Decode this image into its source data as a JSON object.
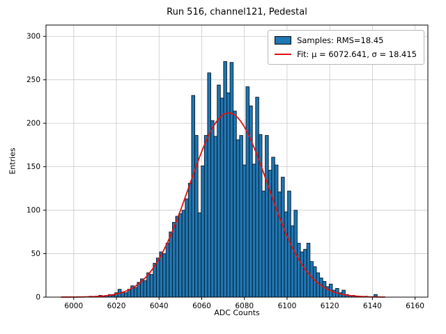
{
  "chart_data": {
    "type": "bar",
    "subtype": "histogram-with-gaussian-fit",
    "title": "Run 516, channel121, Pedestal",
    "xlabel": "ADC Counts",
    "ylabel": "Entries",
    "xlim": [
      5987,
      6166
    ],
    "ylim": [
      0,
      313
    ],
    "x_ticks": [
      6000,
      6020,
      6040,
      6060,
      6080,
      6100,
      6120,
      6140,
      6160
    ],
    "y_ticks": [
      0,
      50,
      100,
      150,
      200,
      250,
      300
    ],
    "grid": true,
    "grid_color": "#c9c9c9",
    "legend": {
      "position": "upper right",
      "items": [
        {
          "label": "Samples: RMS=18.45",
          "type": "patch",
          "color": "#1f77b4"
        },
        {
          "label": "Fit: μ = 6072.641, σ = 18.415",
          "type": "line",
          "color": "#e01212"
        }
      ]
    },
    "histogram": {
      "fill": "#1f77b4",
      "edge": "#0a1622",
      "bin_width": 1.5,
      "first_bin_center": 6008.0,
      "counts": [
        1,
        0,
        1,
        2,
        1,
        2,
        3,
        2,
        5,
        9,
        6,
        5,
        9,
        13,
        11,
        17,
        21,
        19,
        28,
        26,
        39,
        45,
        52,
        50,
        62,
        75,
        86,
        93,
        96,
        100,
        113,
        131,
        232,
        186,
        97,
        151,
        186,
        258,
        203,
        185,
        244,
        229,
        271,
        235,
        270,
        214,
        181,
        186,
        152,
        242,
        220,
        153,
        230,
        187,
        122,
        186,
        146,
        161,
        152,
        121,
        138,
        98,
        122,
        82,
        100,
        62,
        52,
        55,
        62,
        41,
        35,
        28,
        22,
        18,
        12,
        15,
        8,
        10,
        5,
        8,
        3,
        2,
        2,
        1,
        1,
        0,
        1,
        0,
        0,
        3
      ]
    },
    "fit": {
      "mu": 6072.641,
      "sigma": 18.415,
      "amplitude": 212,
      "color": "#e01212",
      "x_start": 5994,
      "x_end": 6146
    }
  }
}
